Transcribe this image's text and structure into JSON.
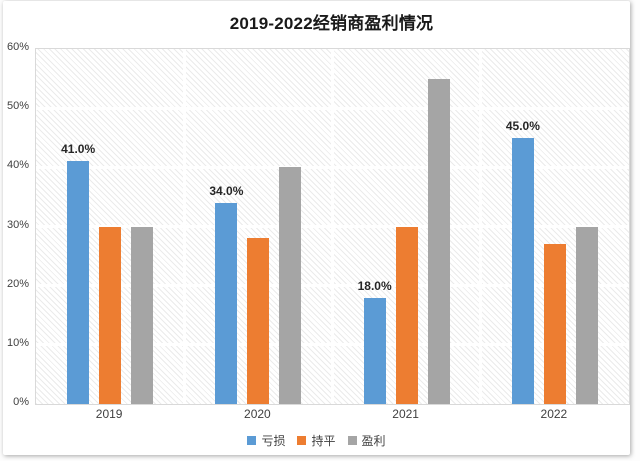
{
  "chart_data": {
    "type": "bar",
    "title": "2019-2022经销商盈利情况",
    "categories": [
      "2019",
      "2020",
      "2021",
      "2022"
    ],
    "series": [
      {
        "name": "亏损",
        "color": "#5B9BD5",
        "values": [
          41,
          34,
          18,
          45
        ],
        "data_labels": [
          "41.0%",
          "34.0%",
          "18.0%",
          "45.0%"
        ]
      },
      {
        "name": "持平",
        "color": "#ED7D31",
        "values": [
          30,
          28,
          30,
          27
        ]
      },
      {
        "name": "盈利",
        "color": "#A5A5A5",
        "values": [
          30,
          40,
          55,
          30
        ]
      }
    ],
    "ylim": [
      0,
      60
    ],
    "ytick_step": 10,
    "ytick_labels": [
      "0%",
      "10%",
      "20%",
      "30%",
      "40%",
      "50%",
      "60%"
    ],
    "grid": "horizontal gridlines + vertical category separators",
    "legend_position": "bottom",
    "plot_background": "light diagonal hatch"
  },
  "colors": {
    "plot_border": "#d9d9d9",
    "grid_line": "#ffffff",
    "hatch_line": "#ebebeb",
    "axis_text": "#404040",
    "title_text": "#1a1a1a",
    "label_text": "#262626"
  }
}
